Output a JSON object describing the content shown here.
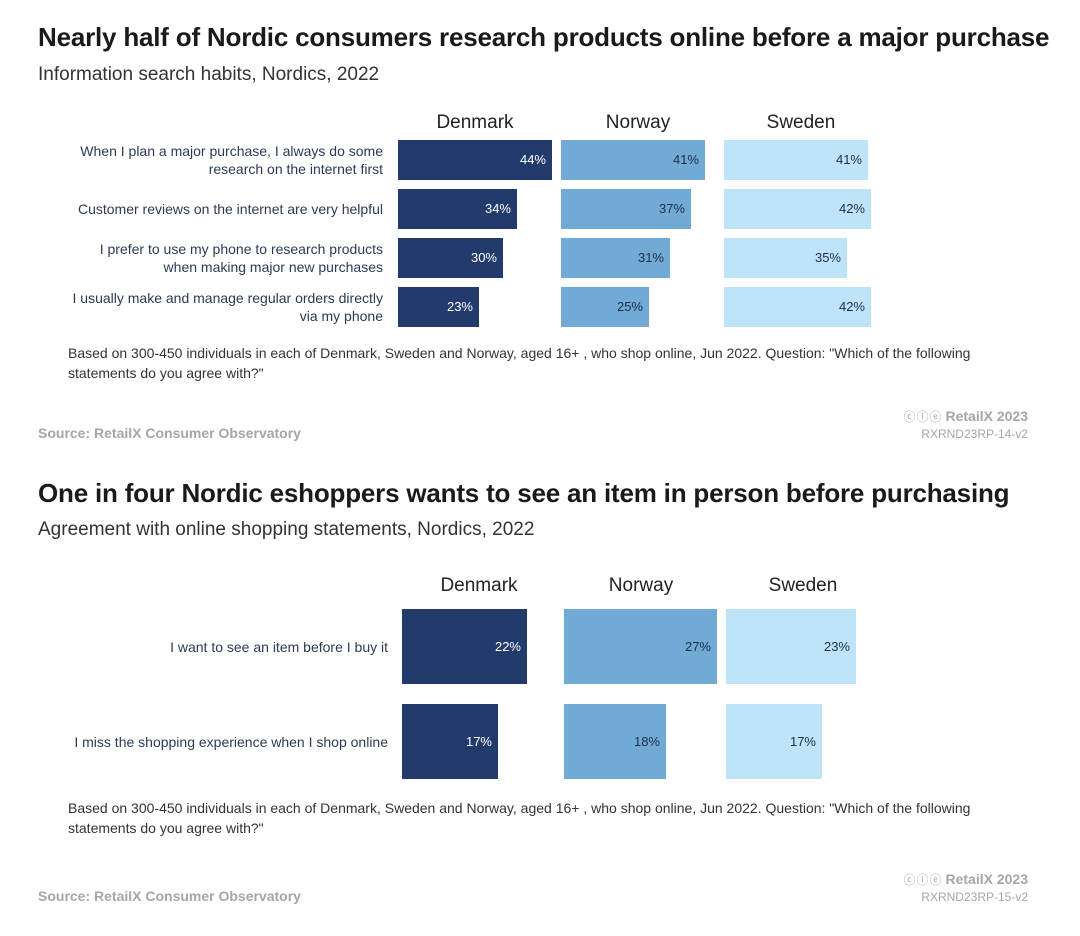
{
  "chart_data": [
    {
      "type": "bar",
      "title": "Nearly half of Nordic consumers research products online before a major purchase",
      "subtitle": "Information search habits, Nordics, 2022",
      "series_names": [
        "Denmark",
        "Norway",
        "Sweden"
      ],
      "colors": [
        "#233a6d",
        "#71aad5",
        "#bfe4f8"
      ],
      "label_colors": [
        "#ffffff",
        "#1e2e4a",
        "#1e2e4a"
      ],
      "xlim": [
        0,
        44
      ],
      "categories": [
        [
          "When I plan a major purchase, I always do some",
          "research on the internet first"
        ],
        [
          "Customer reviews on the internet are very helpful"
        ],
        [
          "I prefer to use my phone to research products",
          "when making major new purchases"
        ],
        [
          "I usually make and manage regular orders directly",
          "via my phone"
        ]
      ],
      "series": [
        {
          "name": "Denmark",
          "values": [
            44,
            34,
            30,
            23
          ]
        },
        {
          "name": "Norway",
          "values": [
            41,
            37,
            31,
            25
          ]
        },
        {
          "name": "Sweden",
          "values": [
            41,
            42,
            35,
            42
          ]
        }
      ],
      "value_suffix": "%",
      "note": "Based on 300-450 individuals in each of Denmark, Sweden and Norway, aged 16+ , who shop online, Jun 2022. Question: \"Which of the following statements do you agree with?\"",
      "source": "Source: RetailX Consumer Observatory",
      "brand": "RetailX 2023",
      "brand_icons": "ⓒⓘⓔ",
      "code": "RXRND23RP-14-v2"
    },
    {
      "type": "bar",
      "title": "One in four Nordic eshoppers wants to see an item in person before purchasing",
      "subtitle": "Agreement with online shopping statements, Nordics, 2022",
      "series_names": [
        "Denmark",
        "Norway",
        "Sweden"
      ],
      "colors": [
        "#233a6d",
        "#71aad5",
        "#bfe4f8"
      ],
      "label_colors": [
        "#ffffff",
        "#1e2e4a",
        "#1e2e4a"
      ],
      "xlim": [
        0,
        27
      ],
      "categories": [
        [
          "I want to see an item before I buy it"
        ],
        [
          "I miss the shopping experience when I shop online"
        ]
      ],
      "series": [
        {
          "name": "Denmark",
          "values": [
            22,
            17
          ]
        },
        {
          "name": "Norway",
          "values": [
            27,
            18
          ]
        },
        {
          "name": "Sweden",
          "values": [
            23,
            17
          ]
        }
      ],
      "value_suffix": "%",
      "note": "Based on 300-450 individuals in each of Denmark, Sweden and Norway, aged 16+ , who shop online, Jun 2022. Question: \"Which of the following statements do you agree with?\"",
      "source": "Source: RetailX Consumer Observatory",
      "brand": "RetailX 2023",
      "brand_icons": "ⓒⓘⓔ",
      "code": "RXRND23RP-15-v2"
    }
  ]
}
